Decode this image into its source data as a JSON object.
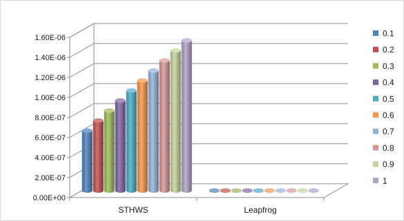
{
  "chart_data": {
    "type": "bar",
    "categories": [
      "STHWS",
      "Leapfrog"
    ],
    "series": [
      {
        "name": "0.1",
        "color": "#4f81bd",
        "values": [
          6e-07,
          0
        ]
      },
      {
        "name": "0.2",
        "color": "#c0504d",
        "values": [
          7e-07,
          0
        ]
      },
      {
        "name": "0.3",
        "color": "#9bbb59",
        "values": [
          8e-07,
          0
        ]
      },
      {
        "name": "0.4",
        "color": "#8064a2",
        "values": [
          9e-07,
          0
        ]
      },
      {
        "name": "0.5",
        "color": "#4bacc6",
        "values": [
          1e-06,
          0
        ]
      },
      {
        "name": "0.6",
        "color": "#f79646",
        "values": [
          1.1e-06,
          0
        ]
      },
      {
        "name": "0.7",
        "color": "#95b3d7",
        "values": [
          1.2e-06,
          0
        ]
      },
      {
        "name": "0.8",
        "color": "#d99694",
        "values": [
          1.3e-06,
          0
        ]
      },
      {
        "name": "0.9",
        "color": "#c3d69b",
        "values": [
          1.4e-06,
          0
        ]
      },
      {
        "name": "1",
        "color": "#b2a2c7",
        "values": [
          1.5e-06,
          0
        ]
      }
    ],
    "y_ticks": [
      "0.00E+00",
      "2.00E-07",
      "4.00E-07",
      "6.00E-07",
      "8.00E-07",
      "1.00E-06",
      "1.20E-06",
      "1.40E-06",
      "1.60E-06"
    ],
    "ylim": [
      0,
      1.6e-06
    ],
    "title": "",
    "xlabel": "",
    "ylabel": "",
    "grid": true,
    "legend": "right",
    "style": "3d-cylinder"
  }
}
